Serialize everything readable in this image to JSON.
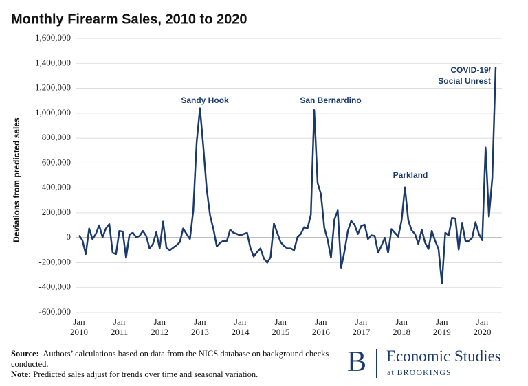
{
  "chart_data": {
    "type": "line",
    "title": "Monthly Firearm Sales, 2010 to 2020",
    "y_label": "Deviations from predicted sales",
    "x": [
      "2010-01",
      "2010-02",
      "2010-03",
      "2010-04",
      "2010-05",
      "2010-06",
      "2010-07",
      "2010-08",
      "2010-09",
      "2010-10",
      "2010-11",
      "2010-12",
      "2011-01",
      "2011-02",
      "2011-03",
      "2011-04",
      "2011-05",
      "2011-06",
      "2011-07",
      "2011-08",
      "2011-09",
      "2011-10",
      "2011-11",
      "2011-12",
      "2012-01",
      "2012-02",
      "2012-03",
      "2012-04",
      "2012-05",
      "2012-06",
      "2012-07",
      "2012-08",
      "2012-09",
      "2012-10",
      "2012-11",
      "2012-12",
      "2013-01",
      "2013-02",
      "2013-03",
      "2013-04",
      "2013-05",
      "2013-06",
      "2013-07",
      "2013-08",
      "2013-09",
      "2013-10",
      "2013-11",
      "2013-12",
      "2014-01",
      "2014-02",
      "2014-03",
      "2014-04",
      "2014-05",
      "2014-06",
      "2014-07",
      "2014-08",
      "2014-09",
      "2014-10",
      "2014-11",
      "2014-12",
      "2015-01",
      "2015-02",
      "2015-03",
      "2015-04",
      "2015-05",
      "2015-06",
      "2015-07",
      "2015-08",
      "2015-09",
      "2015-10",
      "2015-11",
      "2015-12",
      "2016-01",
      "2016-02",
      "2016-03",
      "2016-04",
      "2016-05",
      "2016-06",
      "2016-07",
      "2016-08",
      "2016-09",
      "2016-10",
      "2016-11",
      "2016-12",
      "2017-01",
      "2017-02",
      "2017-03",
      "2017-04",
      "2017-05",
      "2017-06",
      "2017-07",
      "2017-08",
      "2017-09",
      "2017-10",
      "2017-11",
      "2017-12",
      "2018-01",
      "2018-02",
      "2018-03",
      "2018-04",
      "2018-05",
      "2018-06",
      "2018-07",
      "2018-08",
      "2018-09",
      "2018-10",
      "2018-11",
      "2018-12",
      "2019-01",
      "2019-02",
      "2019-03",
      "2019-04",
      "2019-05",
      "2019-06",
      "2019-07",
      "2019-08",
      "2019-09",
      "2019-10",
      "2019-11",
      "2019-12",
      "2020-01",
      "2020-02",
      "2020-03",
      "2020-04",
      "2020-05"
    ],
    "series": [
      {
        "color": "#1b3a6b",
        "values": [
          20000,
          -20000,
          -130000,
          75000,
          -10000,
          30000,
          100000,
          5000,
          75000,
          110000,
          -120000,
          -130000,
          55000,
          50000,
          -160000,
          25000,
          40000,
          5000,
          15000,
          55000,
          15000,
          -85000,
          -50000,
          45000,
          -85000,
          130000,
          -80000,
          -100000,
          -80000,
          -60000,
          -35000,
          75000,
          30000,
          -10000,
          220000,
          760000,
          1040000,
          730000,
          390000,
          180000,
          70000,
          -70000,
          -40000,
          -25000,
          -25000,
          65000,
          40000,
          30000,
          20000,
          30000,
          40000,
          -80000,
          -150000,
          -115000,
          -85000,
          -165000,
          -200000,
          -155000,
          115000,
          40000,
          -35000,
          -65000,
          -85000,
          -85000,
          -100000,
          5000,
          30000,
          85000,
          75000,
          185000,
          1025000,
          440000,
          350000,
          80000,
          -15000,
          -160000,
          145000,
          220000,
          -240000,
          -110000,
          55000,
          135000,
          105000,
          30000,
          95000,
          105000,
          -10000,
          20000,
          15000,
          -120000,
          -65000,
          0,
          -120000,
          70000,
          40000,
          10000,
          140000,
          405000,
          140000,
          60000,
          30000,
          -50000,
          65000,
          -40000,
          -90000,
          55000,
          -25000,
          -90000,
          -365000,
          40000,
          20000,
          160000,
          155000,
          -95000,
          120000,
          -25000,
          -25000,
          0,
          125000,
          30000,
          -20000,
          725000,
          170000,
          480000,
          1370000
        ]
      }
    ],
    "xlim": [
      "2010-01",
      "2020-05"
    ],
    "xticks": [
      {
        "value": "2010-01",
        "label": "Jan 2010"
      },
      {
        "value": "2011-01",
        "label": "Jan 2011"
      },
      {
        "value": "2012-01",
        "label": "Jan 2012"
      },
      {
        "value": "2013-01",
        "label": "Jan 2013"
      },
      {
        "value": "2014-01",
        "label": "Jan 2014"
      },
      {
        "value": "2015-01",
        "label": "Jan 2015"
      },
      {
        "value": "2016-01",
        "label": "Jan 2016"
      },
      {
        "value": "2017-01",
        "label": "Jan 2017"
      },
      {
        "value": "2018-01",
        "label": "Jan 2018"
      },
      {
        "value": "2019-01",
        "label": "Jan 2019"
      },
      {
        "value": "2020-01",
        "label": "Jan 2020"
      }
    ],
    "ylim": [
      -600000,
      1600000
    ],
    "yticks": [
      {
        "value": -600000,
        "label": "-600,000"
      },
      {
        "value": -400000,
        "label": "-400,000"
      },
      {
        "value": -200000,
        "label": "-200,000"
      },
      0,
      {
        "value": 200000,
        "label": "200,000"
      },
      {
        "value": 400000,
        "label": "400,000"
      },
      {
        "value": 600000,
        "label": "600,000"
      },
      {
        "value": 800000,
        "label": "800,000"
      },
      {
        "value": 1000000,
        "label": "1,000,000"
      },
      {
        "value": 1200000,
        "label": "1,200,000"
      },
      {
        "value": 1400000,
        "label": "1,400,000"
      },
      {
        "value": 1600000,
        "label": "1,600,000"
      }
    ],
    "grid": true,
    "annotations": [
      "Sandy Hook",
      "San Bernardino",
      "Parkland",
      "COVID-19/ Social Unrest"
    ]
  },
  "footer": {
    "source_label": "Source:",
    "source_text": "Authors’ calculations based on data from the NICS database on background checks conducted.",
    "note_label": "Note:",
    "note_text": "Predicted sales adjust for trends over time and seasonal variation.",
    "logo_letter": "B",
    "logo_name": "Economic Studies",
    "logo_sub": "at BROOKINGS"
  }
}
